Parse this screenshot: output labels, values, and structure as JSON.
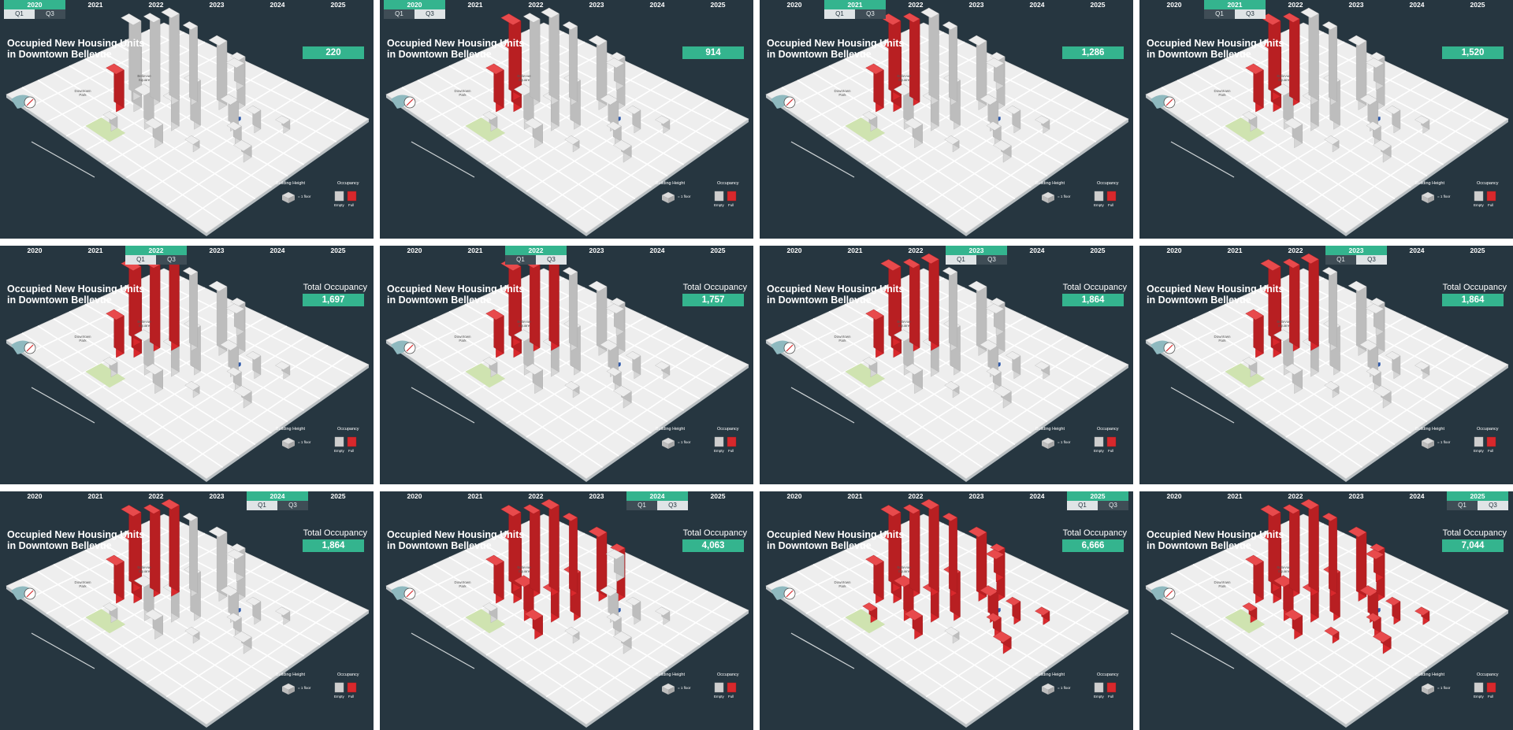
{
  "timeline": {
    "years": [
      "2020",
      "2021",
      "2022",
      "2023",
      "2024",
      "2025"
    ],
    "halves": [
      "Q1",
      "Q3"
    ]
  },
  "panel_title_line1": "Occupied New Housing Units",
  "panel_title_line2": "in Downtown Bellevue",
  "total_label": "Total Occupancy",
  "map_labels": {
    "square": [
      "Bellevue",
      "Square"
    ],
    "park": [
      "Downtown",
      "Park"
    ]
  },
  "legend": {
    "height_title": "Building Height",
    "height_unit": "= 1 floor",
    "occupancy_title": "Occupancy",
    "empty": "Empty",
    "full": "Full"
  },
  "colors": {
    "background": "#263640",
    "accent": "#34b48e",
    "occupied": "#d8282c",
    "empty": "#dcdcdc",
    "ground": "#eeeeee"
  },
  "panels": [
    {
      "year": "2020",
      "half": "Q1",
      "total": "220",
      "show_label": false,
      "full_fraction": 0.03
    },
    {
      "year": "2020",
      "half": "Q3",
      "total": "914",
      "show_label": false,
      "full_fraction": 0.13
    },
    {
      "year": "2021",
      "half": "Q1",
      "total": "1,286",
      "show_label": false,
      "full_fraction": 0.18
    },
    {
      "year": "2021",
      "half": "Q3",
      "total": "1,520",
      "show_label": false,
      "full_fraction": 0.22
    },
    {
      "year": "2022",
      "half": "Q1",
      "total": "1,697",
      "show_label": true,
      "full_fraction": 0.24
    },
    {
      "year": "2022",
      "half": "Q3",
      "total": "1,757",
      "show_label": true,
      "full_fraction": 0.25
    },
    {
      "year": "2023",
      "half": "Q1",
      "total": "1,864",
      "show_label": true,
      "full_fraction": 0.26
    },
    {
      "year": "2023",
      "half": "Q3",
      "total": "1,864",
      "show_label": true,
      "full_fraction": 0.26
    },
    {
      "year": "2024",
      "half": "Q1",
      "total": "1,864",
      "show_label": true,
      "full_fraction": 0.26
    },
    {
      "year": "2024",
      "half": "Q3",
      "total": "4,063",
      "show_label": true,
      "full_fraction": 0.58
    },
    {
      "year": "2025",
      "half": "Q1",
      "total": "6,666",
      "show_label": true,
      "full_fraction": 0.95
    },
    {
      "year": "2025",
      "half": "Q3",
      "total": "7,044",
      "show_label": true,
      "full_fraction": 1.0
    }
  ]
}
